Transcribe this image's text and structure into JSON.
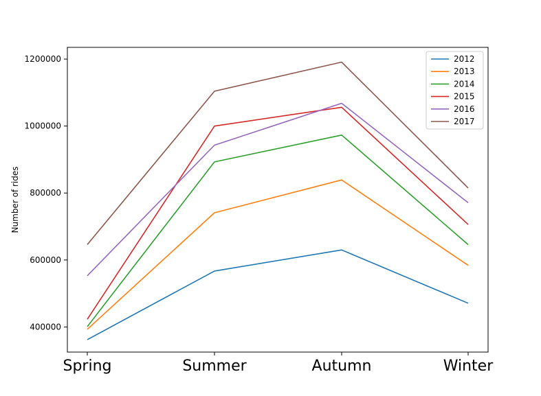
{
  "chart_data": {
    "type": "line",
    "title": "",
    "xlabel": "",
    "ylabel": "Number of rides",
    "categories": [
      "Spring",
      "Summer",
      "Autumn",
      "Winter"
    ],
    "ylim": [
      325000,
      1235000
    ],
    "yticks": [
      400000,
      600000,
      800000,
      1000000,
      1200000
    ],
    "ytick_labels": [
      "400000",
      "600000",
      "800000",
      "1000000",
      "1200000"
    ],
    "grid": false,
    "legend_position": "top-right",
    "series": [
      {
        "name": "2012",
        "color": "#1f77b4",
        "values": [
          362000,
          567000,
          630000,
          471000
        ]
      },
      {
        "name": "2013",
        "color": "#ff7f0e",
        "values": [
          393000,
          741000,
          839000,
          584000
        ]
      },
      {
        "name": "2014",
        "color": "#2ca02c",
        "values": [
          401000,
          893000,
          973000,
          646000
        ]
      },
      {
        "name": "2015",
        "color": "#d62728",
        "values": [
          423000,
          1000000,
          1056000,
          706000
        ]
      },
      {
        "name": "2016",
        "color": "#9467bd",
        "values": [
          553000,
          943000,
          1068000,
          771000
        ]
      },
      {
        "name": "2017",
        "color": "#8c564b",
        "values": [
          646000,
          1104000,
          1191000,
          815000
        ]
      }
    ]
  }
}
